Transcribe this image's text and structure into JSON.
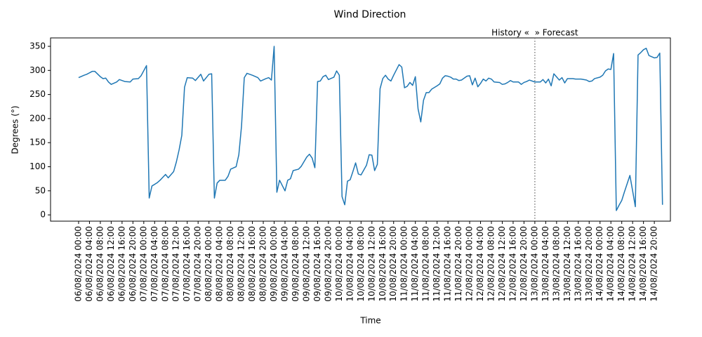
{
  "chart_data": {
    "type": "line",
    "title": "Wind Direction",
    "x_label": "Time",
    "y_label": "Degrees (°)",
    "color": "#1f77b4",
    "x": [
      "06/08/2024 00:00",
      "06/08/2024 02:00",
      "06/08/2024 03:00",
      "06/08/2024 05:00",
      "06/08/2024 06:00",
      "06/08/2024 08:00",
      "06/08/2024 09:00",
      "06/08/2024 10:00",
      "06/08/2024 11:00",
      "06/08/2024 12:00",
      "06/08/2024 14:00",
      "06/08/2024 15:00",
      "06/08/2024 17:00",
      "06/08/2024 19:00",
      "06/08/2024 20:00",
      "06/08/2024 22:00",
      "06/08/2024 23:00",
      "07/08/2024 01:00",
      "07/08/2024 02:00",
      "07/08/2024 03:00",
      "07/08/2024 05:00",
      "07/08/2024 06:00",
      "07/08/2024 08:00",
      "07/08/2024 09:00",
      "07/08/2024 11:00",
      "07/08/2024 12:00",
      "07/08/2024 13:00",
      "07/08/2024 14:00",
      "07/08/2024 15:00",
      "07/08/2024 16:00",
      "07/08/2024 18:00",
      "07/08/2024 19:00",
      "07/08/2024 21:00",
      "07/08/2024 22:00",
      "08/08/2024 00:00",
      "08/08/2024 01:00",
      "08/08/2024 02:00",
      "08/08/2024 03:00",
      "08/08/2024 04:00",
      "08/08/2024 06:00",
      "08/08/2024 07:00",
      "08/08/2024 08:00",
      "08/08/2024 10:00",
      "08/08/2024 11:00",
      "08/08/2024 12:00",
      "08/08/2024 13:00",
      "08/08/2024 14:00",
      "08/08/2024 16:00",
      "08/08/2024 18:00",
      "08/08/2024 19:00",
      "08/08/2024 21:00",
      "08/08/2024 22:00",
      "08/08/2024 23:00",
      "09/08/2024 00:00",
      "09/08/2024 01:00",
      "09/08/2024 02:00",
      "09/08/2024 04:00",
      "09/08/2024 05:00",
      "09/08/2024 06:00",
      "09/08/2024 07:00",
      "09/08/2024 09:00",
      "09/08/2024 10:00",
      "09/08/2024 12:00",
      "09/08/2024 13:00",
      "09/08/2024 14:00",
      "09/08/2024 15:00",
      "09/08/2024 16:00",
      "09/08/2024 17:00",
      "09/08/2024 18:00",
      "09/08/2024 19:00",
      "09/08/2024 20:00",
      "09/08/2024 22:00",
      "09/08/2024 23:00",
      "10/08/2024 00:00",
      "10/08/2024 01:00",
      "10/08/2024 02:00",
      "10/08/2024 03:00",
      "10/08/2024 04:00",
      "10/08/2024 05:00",
      "10/08/2024 06:00",
      "10/08/2024 07:00",
      "10/08/2024 08:00",
      "10/08/2024 10:00",
      "10/08/2024 11:00",
      "10/08/2024 12:00",
      "10/08/2024 13:00",
      "10/08/2024 14:00",
      "10/08/2024 15:00",
      "10/08/2024 16:00",
      "10/08/2024 17:00",
      "10/08/2024 18:00",
      "10/08/2024 19:00",
      "10/08/2024 20:00",
      "10/08/2024 22:00",
      "10/08/2024 23:00",
      "11/08/2024 00:00",
      "11/08/2024 01:00",
      "11/08/2024 02:00",
      "11/08/2024 03:00",
      "11/08/2024 04:00",
      "11/08/2024 05:00",
      "11/08/2024 06:00",
      "11/08/2024 07:00",
      "11/08/2024 08:00",
      "11/08/2024 09:00",
      "11/08/2024 10:00",
      "11/08/2024 12:00",
      "11/08/2024 13:00",
      "11/08/2024 14:00",
      "11/08/2024 15:00",
      "11/08/2024 16:00",
      "11/08/2024 17:00",
      "11/08/2024 18:00",
      "11/08/2024 19:00",
      "11/08/2024 20:00",
      "11/08/2024 21:00",
      "11/08/2024 23:00",
      "12/08/2024 00:00",
      "12/08/2024 01:00",
      "12/08/2024 02:00",
      "12/08/2024 03:00",
      "12/08/2024 04:00",
      "12/08/2024 05:00",
      "12/08/2024 06:00",
      "12/08/2024 07:00",
      "12/08/2024 08:00",
      "12/08/2024 09:00",
      "12/08/2024 11:00",
      "12/08/2024 12:00",
      "12/08/2024 13:00",
      "12/08/2024 14:00",
      "12/08/2024 15:00",
      "12/08/2024 16:00",
      "12/08/2024 18:00",
      "12/08/2024 19:00",
      "12/08/2024 20:00",
      "12/08/2024 21:00",
      "12/08/2024 22:00",
      "13/08/2024 00:00",
      "13/08/2024 02:00",
      "13/08/2024 03:00",
      "13/08/2024 04:00",
      "13/08/2024 05:00",
      "13/08/2024 06:00",
      "13/08/2024 07:00",
      "13/08/2024 09:00",
      "13/08/2024 10:00",
      "13/08/2024 11:00",
      "13/08/2024 12:00",
      "13/08/2024 14:00",
      "13/08/2024 15:00",
      "13/08/2024 17:00",
      "13/08/2024 19:00",
      "13/08/2024 20:00",
      "13/08/2024 21:00",
      "13/08/2024 22:00",
      "14/08/2024 00:00",
      "14/08/2024 01:00",
      "14/08/2024 02:00",
      "14/08/2024 03:00",
      "14/08/2024 04:00",
      "14/08/2024 05:00",
      "14/08/2024 06:00",
      "14/08/2024 07:00",
      "14/08/2024 08:00",
      "14/08/2024 09:00",
      "14/08/2024 10:00",
      "14/08/2024 11:00",
      "14/08/2024 12:00",
      "14/08/2024 13:00",
      "14/08/2024 14:00",
      "14/08/2024 15:00",
      "14/08/2024 16:00",
      "14/08/2024 17:00",
      "14/08/2024 18:00",
      "14/08/2024 20:00",
      "14/08/2024 21:00",
      "14/08/2024 22:00",
      "14/08/2024 23:00"
    ],
    "values": [
      285,
      290,
      292,
      298,
      298,
      287,
      283,
      284,
      276,
      271,
      276,
      281,
      277,
      276,
      282,
      283,
      289,
      310,
      35,
      60,
      67,
      72,
      84,
      77,
      90,
      110,
      135,
      165,
      265,
      285,
      284,
      279,
      292,
      278,
      292,
      293,
      35,
      66,
      72,
      72,
      80,
      95,
      100,
      125,
      185,
      285,
      294,
      290,
      285,
      278,
      283,
      285,
      280,
      350,
      47,
      72,
      50,
      72,
      75,
      92,
      95,
      101,
      120,
      126,
      118,
      98,
      277,
      278,
      287,
      290,
      281,
      286,
      299,
      290,
      38,
      21,
      70,
      73,
      90,
      108,
      85,
      83,
      103,
      125,
      124,
      92,
      105,
      262,
      283,
      290,
      282,
      278,
      290,
      312,
      307,
      264,
      267,
      275,
      269,
      287,
      220,
      193,
      238,
      254,
      254,
      261,
      268,
      272,
      284,
      289,
      288,
      286,
      282,
      282,
      279,
      280,
      288,
      289,
      270,
      284,
      266,
      273,
      282,
      278,
      284,
      282,
      276,
      275,
      271,
      272,
      275,
      279,
      276,
      276,
      271,
      275,
      277,
      280,
      276,
      276,
      281,
      274,
      282,
      268,
      293,
      280,
      285,
      274,
      283,
      283,
      282,
      282,
      280,
      277,
      278,
      283,
      286,
      290,
      299,
      303,
      302,
      335,
      9,
      20,
      30,
      48,
      65,
      82,
      50,
      17,
      332,
      337,
      343,
      346,
      331,
      326,
      327,
      336,
      21
    ],
    "xlim": [
      "05/08/2024 13:40",
      "15/08/2024 01:55"
    ],
    "xticks": [
      "06/08/2024 00:00",
      "06/08/2024 04:00",
      "06/08/2024 08:00",
      "06/08/2024 12:00",
      "06/08/2024 16:00",
      "06/08/2024 20:00",
      "07/08/2024 00:00",
      "07/08/2024 04:00",
      "07/08/2024 08:00",
      "07/08/2024 12:00",
      "07/08/2024 16:00",
      "07/08/2024 20:00",
      "08/08/2024 00:00",
      "08/08/2024 04:00",
      "08/08/2024 08:00",
      "08/08/2024 12:00",
      "08/08/2024 16:00",
      "08/08/2024 20:00",
      "09/08/2024 00:00",
      "09/08/2024 04:00",
      "09/08/2024 08:00",
      "09/08/2024 12:00",
      "09/08/2024 16:00",
      "09/08/2024 20:00",
      "10/08/2024 00:00",
      "10/08/2024 04:00",
      "10/08/2024 08:00",
      "10/08/2024 12:00",
      "10/08/2024 16:00",
      "10/08/2024 20:00",
      "11/08/2024 00:00",
      "11/08/2024 04:00",
      "11/08/2024 08:00",
      "11/08/2024 12:00",
      "11/08/2024 16:00",
      "11/08/2024 20:00",
      "12/08/2024 00:00",
      "12/08/2024 04:00",
      "12/08/2024 08:00",
      "12/08/2024 12:00",
      "12/08/2024 16:00",
      "12/08/2024 20:00",
      "13/08/2024 00:00",
      "13/08/2024 04:00",
      "13/08/2024 08:00",
      "13/08/2024 12:00",
      "13/08/2024 16:00",
      "13/08/2024 20:00",
      "14/08/2024 00:00",
      "14/08/2024 04:00",
      "14/08/2024 08:00",
      "14/08/2024 12:00",
      "14/08/2024 16:00",
      "14/08/2024 20:00"
    ],
    "ylim": [
      -13,
      367.5
    ],
    "yticks": [
      0,
      50,
      100,
      150,
      200,
      250,
      300,
      350
    ],
    "divider": {
      "x": "13/08/2024 00:00",
      "label": "History «  » Forecast"
    }
  }
}
